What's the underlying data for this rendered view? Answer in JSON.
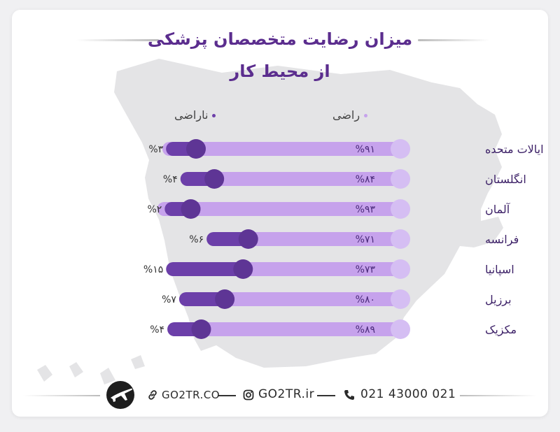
{
  "title_line1": "میزان رضایت متخصصان پزشکی",
  "title_line2": "از محیط کار",
  "legend": {
    "satisfied": "راضی",
    "dissatisfied": "ناراضی"
  },
  "colors": {
    "title": "#5b2d8e",
    "satisfied": "#c6a2ec",
    "dissatisfied": "#6c3fa9",
    "knob_light": "#d5bef3",
    "knob_dark": "#5e3595"
  },
  "footer": {
    "phone": "021 43000 021",
    "instagram": "GO2TR.ir",
    "website": "GO2TR.CO",
    "phone_icon": "phone-icon",
    "instagram_icon": "instagram-icon",
    "link_icon": "link-icon",
    "logo_icon": "airplane-logo-icon"
  },
  "chart_data": {
    "type": "bar",
    "categories": [
      "ایالات متحده",
      "انگلستان",
      "آلمان",
      "فرانسه",
      "اسپانیا",
      "برزیل",
      "مکزیک"
    ],
    "series": [
      {
        "name": "راضی",
        "values": [
          91,
          84,
          93,
          71,
          73,
          80,
          89
        ],
        "labels": [
          "%۹۱",
          "%۸۴",
          "%۹۳",
          "%۷۱",
          "%۷۳",
          "%۸۰",
          "%۸۹"
        ]
      },
      {
        "name": "ناراضی",
        "values": [
          3,
          4,
          2,
          6,
          15,
          7,
          4
        ],
        "labels": [
          "%۳",
          "%۴",
          "%۲",
          "%۶",
          "%۱۵",
          "%۷",
          "%۴"
        ]
      }
    ]
  }
}
